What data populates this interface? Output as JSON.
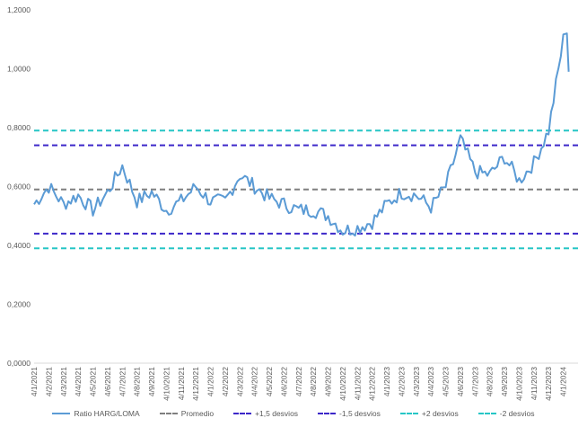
{
  "chart_data": {
    "type": "line",
    "title": "",
    "xlabel": "",
    "ylabel": "",
    "ylim": [
      0,
      1.2
    ],
    "y_ticks": [
      "0,0000",
      "0,2000",
      "0,4000",
      "0,6000",
      "0,8000",
      "1,0000",
      "1,2000"
    ],
    "x_ticks": [
      "4/1/2021",
      "4/2/2021",
      "4/3/2021",
      "4/4/2021",
      "4/5/2021",
      "4/6/2021",
      "4/7/2021",
      "4/8/2021",
      "4/9/2021",
      "4/10/2021",
      "4/11/2021",
      "4/12/2021",
      "4/1/2022",
      "4/2/2022",
      "4/3/2022",
      "4/4/2022",
      "4/5/2022",
      "4/6/2022",
      "4/7/2022",
      "4/8/2022",
      "4/9/2022",
      "4/10/2022",
      "4/11/2022",
      "4/12/2022",
      "4/1/2023",
      "4/2/2023",
      "4/3/2023",
      "4/4/2023",
      "4/5/2023",
      "4/6/2023",
      "4/7/2023",
      "4/8/2023",
      "4/9/2023",
      "4/10/2023",
      "4/11/2023",
      "4/12/2023",
      "4/1/2024"
    ],
    "grid": false,
    "legend_position": "bottom",
    "series": [
      {
        "name": "Ratio HARG/LOMA",
        "color": "#5B9BD5",
        "style": "solid",
        "x": [
          "4/1/2021",
          "4/2/2021",
          "4/3/2021",
          "4/4/2021",
          "4/5/2021",
          "4/6/2021",
          "4/7/2021",
          "4/8/2021",
          "4/9/2021",
          "4/10/2021",
          "4/11/2021",
          "4/12/2021",
          "4/1/2022",
          "4/2/2022",
          "4/3/2022",
          "4/4/2022",
          "4/5/2022",
          "4/6/2022",
          "4/7/2022",
          "4/8/2022",
          "4/9/2022",
          "4/10/2022",
          "4/11/2022",
          "4/12/2022",
          "4/1/2023",
          "4/2/2023",
          "4/3/2023",
          "4/4/2023",
          "4/5/2023",
          "4/6/2023",
          "4/7/2023",
          "4/8/2023",
          "4/9/2023",
          "4/10/2023",
          "4/11/2023",
          "4/12/2023",
          "4/1/2024"
        ],
        "values": [
          0.54,
          0.6,
          0.54,
          0.57,
          0.52,
          0.58,
          0.67,
          0.55,
          0.58,
          0.52,
          0.55,
          0.6,
          0.55,
          0.55,
          0.64,
          0.6,
          0.56,
          0.54,
          0.52,
          0.52,
          0.5,
          0.45,
          0.46,
          0.48,
          0.54,
          0.58,
          0.57,
          0.53,
          0.6,
          0.76,
          0.65,
          0.64,
          0.7,
          0.62,
          0.68,
          0.79,
          1.1
        ]
      },
      {
        "name": "Promedio",
        "color": "#7F7F7F",
        "style": "dashed",
        "value": 0.59
      },
      {
        "name": "+1,5 desvios",
        "color": "#3C27C9",
        "style": "dashed",
        "value": 0.74
      },
      {
        "name": "-1,5 desvios",
        "color": "#3C27C9",
        "style": "dashed",
        "value": 0.44
      },
      {
        "name": "+2 desvios",
        "color": "#26C6C6",
        "style": "dashed",
        "value": 0.79
      },
      {
        "name": "-2 desvios",
        "color": "#26C6C6",
        "style": "dashed",
        "value": 0.39
      }
    ]
  }
}
